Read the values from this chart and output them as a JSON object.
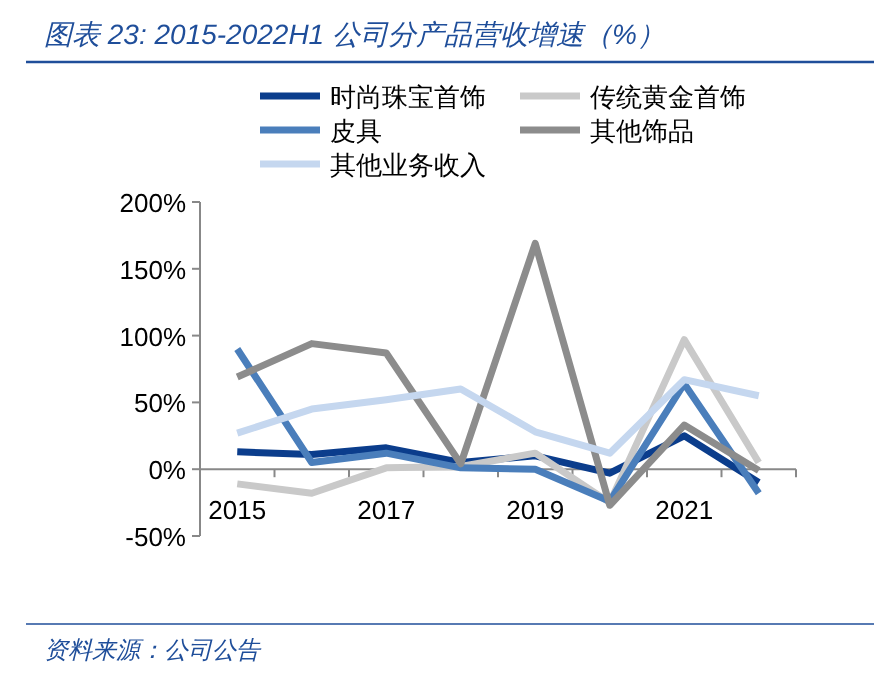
{
  "chart_data": {
    "type": "line",
    "title": "图表 23:  2015-2022H1 公司分产品营收增速（%）",
    "categories": [
      "2015",
      null,
      "2017",
      null,
      "2019",
      null,
      "2021",
      null
    ],
    "series": [
      {
        "name": "时尚珠宝首饰",
        "color": "#0b3d8c",
        "values": [
          13,
          11,
          16,
          5,
          10,
          -3,
          25,
          -10
        ]
      },
      {
        "name": "传统黄金首饰",
        "color": "#c9c9c9",
        "values": [
          -11,
          -18,
          1,
          2,
          12,
          -25,
          97,
          5
        ]
      },
      {
        "name": "皮具",
        "color": "#4a7ebb",
        "values": [
          90,
          5,
          12,
          1,
          0,
          -24,
          64,
          -18
        ]
      },
      {
        "name": "其他饰品",
        "color": "#8c8c8c",
        "values": [
          69,
          94,
          87,
          4,
          169,
          -27,
          33,
          -1
        ]
      },
      {
        "name": "其他业务收入",
        "color": "#c5d7ef",
        "values": [
          27,
          45,
          52,
          60,
          28,
          12,
          67,
          55
        ]
      }
    ],
    "ylim": [
      -50,
      200
    ],
    "yticks": [
      {
        "value": -50,
        "label": "-50%"
      },
      {
        "value": 0,
        "label": "0%"
      },
      {
        "value": 50,
        "label": "50%"
      },
      {
        "value": 100,
        "label": "100%"
      },
      {
        "value": 150,
        "label": "150%"
      },
      {
        "value": 200,
        "label": "200%"
      }
    ],
    "grid": false,
    "legend": "top",
    "marker": "none",
    "line_style": "solid",
    "annotations": [
      "资料来源：公司公告"
    ]
  }
}
